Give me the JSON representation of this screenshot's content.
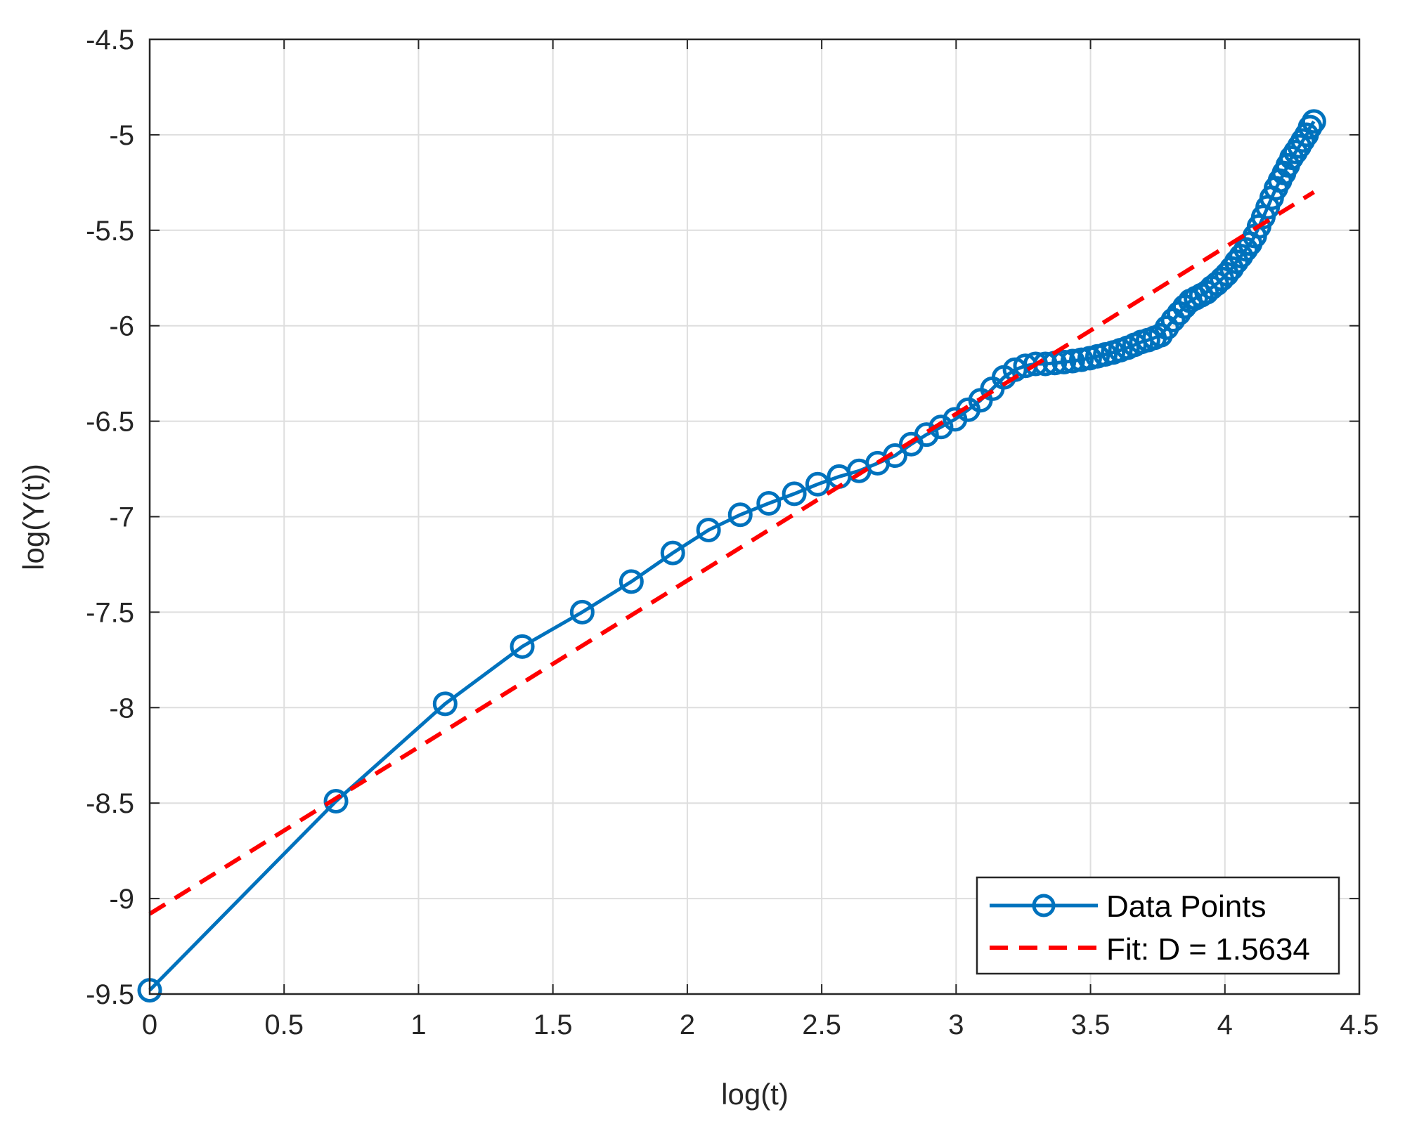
{
  "chart_data": {
    "type": "line",
    "title": "",
    "xlabel": "log(t)",
    "ylabel": "log(Y(t))",
    "xlim": [
      0,
      4.5
    ],
    "ylim": [
      -9.5,
      -4.5
    ],
    "xticks": [
      0,
      0.5,
      1,
      1.5,
      2,
      2.5,
      3,
      3.5,
      4,
      4.5
    ],
    "xtick_labels": [
      "0",
      "0.5",
      "1",
      "1.5",
      "2",
      "2.5",
      "3",
      "3.5",
      "4",
      "4.5"
    ],
    "yticks": [
      -4.5,
      -5,
      -5.5,
      -6,
      -6.5,
      -7,
      -7.5,
      -8,
      -8.5,
      -9,
      -9.5
    ],
    "ytick_labels": [
      "-4.5",
      "-5",
      "-5.5",
      "-6",
      "-6.5",
      "-7",
      "-7.5",
      "-8",
      "-8.5",
      "-9",
      "-9.5"
    ],
    "grid": true,
    "legend_position": "bottom-right",
    "series": [
      {
        "name": "Data Points",
        "color": "#0072BD",
        "style": "solid-line-circle-markers",
        "x": [
          0,
          0.693,
          1.099,
          1.386,
          1.609,
          1.792,
          1.946,
          2.079,
          2.197,
          2.303,
          2.398,
          2.485,
          2.565,
          2.639,
          2.708,
          2.773,
          2.833,
          2.89,
          2.944,
          2.996,
          3.045,
          3.091,
          3.135,
          3.178,
          3.219,
          3.258,
          3.296,
          3.332,
          3.367,
          3.401,
          3.434,
          3.466,
          3.497,
          3.526,
          3.555,
          3.584,
          3.611,
          3.638,
          3.664,
          3.689,
          3.714,
          3.738,
          3.761,
          3.784,
          3.807,
          3.829,
          3.85,
          3.871,
          3.892,
          3.912,
          3.932,
          3.951,
          3.97,
          3.989,
          4.007,
          4.025,
          4.043,
          4.06,
          4.078,
          4.094,
          4.111,
          4.127,
          4.143,
          4.159,
          4.174,
          4.19,
          4.205,
          4.22,
          4.234,
          4.248,
          4.263,
          4.277,
          4.29,
          4.304,
          4.317,
          4.331
        ],
        "y": [
          -9.48,
          -8.49,
          -7.98,
          -7.68,
          -7.5,
          -7.34,
          -7.19,
          -7.07,
          -6.99,
          -6.93,
          -6.88,
          -6.83,
          -6.79,
          -6.76,
          -6.72,
          -6.68,
          -6.62,
          -6.57,
          -6.53,
          -6.49,
          -6.44,
          -6.39,
          -6.33,
          -6.27,
          -6.23,
          -6.21,
          -6.2,
          -6.2,
          -6.195,
          -6.19,
          -6.185,
          -6.178,
          -6.17,
          -6.16,
          -6.15,
          -6.14,
          -6.128,
          -6.115,
          -6.1,
          -6.085,
          -6.075,
          -6.063,
          -6.05,
          -6.01,
          -5.97,
          -5.935,
          -5.9,
          -5.87,
          -5.855,
          -5.84,
          -5.825,
          -5.8,
          -5.78,
          -5.755,
          -5.73,
          -5.7,
          -5.665,
          -5.635,
          -5.6,
          -5.57,
          -5.53,
          -5.48,
          -5.43,
          -5.38,
          -5.33,
          -5.28,
          -5.24,
          -5.2,
          -5.16,
          -5.12,
          -5.09,
          -5.06,
          -5.03,
          -5.0,
          -4.96,
          -4.93
        ]
      },
      {
        "name": "Fit: D = 1.5634",
        "color": "#FF0000",
        "style": "dashed-line",
        "x": [
          0,
          4.331
        ],
        "y": [
          -9.08,
          -5.3
        ]
      }
    ]
  }
}
